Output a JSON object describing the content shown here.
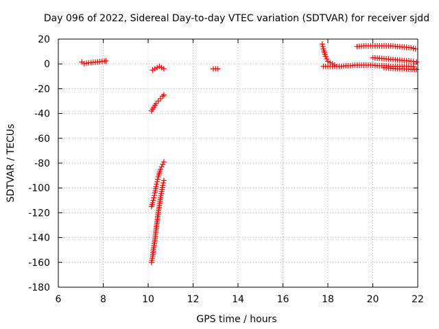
{
  "chart_data": {
    "type": "scatter",
    "title": "Day 096 of 2022, Sidereal Day-to-day VTEC variation (SDTVAR) for receiver sjdd",
    "xlabel": "GPS time / hours",
    "ylabel": "SDTVAR / TECUs",
    "xlim": [
      6,
      22
    ],
    "ylim": [
      -180,
      20
    ],
    "xticks": [
      6,
      8,
      10,
      12,
      14,
      16,
      18,
      20,
      22
    ],
    "yticks": [
      20,
      0,
      -20,
      -40,
      -60,
      -80,
      -100,
      -120,
      -140,
      -160,
      -180
    ],
    "grid": true,
    "marker": "+",
    "color": "#ff0000",
    "series": [
      {
        "x": [
          7.05,
          7.15,
          7.25,
          7.35,
          7.45,
          7.55,
          7.65,
          7.75,
          7.85,
          7.95,
          8.05,
          8.12
        ],
        "y": [
          1.5,
          0.2,
          0.5,
          0.8,
          1.0,
          1.2,
          1.4,
          1.6,
          1.8,
          2.0,
          2.2,
          2.4
        ]
      },
      {
        "x": [
          10.2,
          10.3,
          10.4,
          10.5,
          10.6,
          10.7
        ],
        "y": [
          -5,
          -4,
          -3,
          -2,
          -3,
          -4
        ]
      },
      {
        "x": [
          12.9,
          13.0,
          13.1
        ],
        "y": [
          -4,
          -4,
          -4
        ]
      },
      {
        "x": [
          10.15,
          10.25,
          10.35,
          10.45,
          10.55,
          10.65,
          10.7
        ],
        "y": [
          -38,
          -35,
          -32,
          -30,
          -28,
          -26,
          -25
        ]
      },
      {
        "x": [
          10.15,
          10.2,
          10.25,
          10.3,
          10.35,
          10.4,
          10.45,
          10.5,
          10.55,
          10.6,
          10.65,
          10.7
        ],
        "y": [
          -115,
          -112,
          -108,
          -104,
          -99,
          -95,
          -91,
          -88,
          -85,
          -83,
          -81,
          -79
        ]
      },
      {
        "x": [
          10.15,
          10.2,
          10.25,
          10.3,
          10.35,
          10.4,
          10.45,
          10.5,
          10.55,
          10.6,
          10.65,
          10.7
        ],
        "y": [
          -160,
          -155,
          -148,
          -142,
          -134,
          -127,
          -120,
          -114,
          -108,
          -103,
          -98,
          -94
        ]
      },
      {
        "x": [
          17.75,
          17.8,
          17.85,
          17.9,
          17.95,
          18.0,
          18.1,
          18.2,
          18.3
        ],
        "y": [
          16,
          12,
          9,
          6,
          4,
          2,
          1,
          0,
          -1
        ]
      },
      {
        "x": [
          17.8,
          18.0,
          18.2,
          18.4,
          18.6,
          18.8,
          19.0,
          19.2,
          19.4,
          19.6,
          19.8,
          20.0,
          20.2,
          20.4,
          20.6,
          20.8,
          21.0,
          21.2,
          21.4,
          21.6,
          21.8
        ],
        "y": [
          -2,
          -2,
          -2,
          -2,
          -2,
          -1.5,
          -1.5,
          -1,
          -1,
          -1,
          -1,
          -1,
          -1.5,
          -1.5,
          -1.5,
          -2,
          -2,
          -2,
          -2,
          -2,
          -2
        ]
      },
      {
        "x": [
          19.3,
          19.6,
          19.9,
          20.2,
          20.5,
          20.8,
          21.1,
          21.4,
          21.7,
          21.9
        ],
        "y": [
          14,
          14.5,
          14.5,
          14.5,
          14.5,
          14.5,
          14,
          13.5,
          13,
          12
        ]
      },
      {
        "x": [
          20.0,
          20.3,
          20.6,
          20.9,
          21.2,
          21.5,
          21.8,
          21.95
        ],
        "y": [
          5,
          4.5,
          4,
          3.5,
          3,
          2.5,
          2,
          1.5
        ]
      },
      {
        "x": [
          20.5,
          20.8,
          21.1,
          21.4,
          21.7,
          21.95
        ],
        "y": [
          -3,
          -3.5,
          -4,
          -4,
          -4.5,
          -4.5
        ]
      }
    ]
  }
}
